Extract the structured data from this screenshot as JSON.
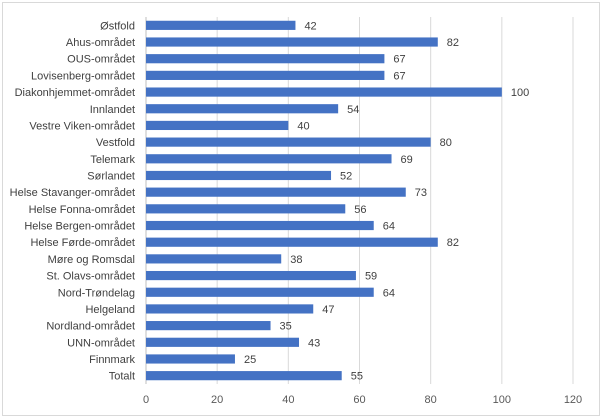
{
  "chart_data": {
    "type": "bar",
    "orientation": "horizontal",
    "title": "",
    "xlabel": "",
    "ylabel": "",
    "xlim": [
      0,
      120
    ],
    "xticks": [
      0,
      20,
      40,
      60,
      80,
      100,
      120
    ],
    "grid": true,
    "legend": "none",
    "bar_color": "#4472c4",
    "categories": [
      "Østfold",
      "Ahus-området",
      "OUS-området",
      "Lovisenberg-området",
      "Diakonhjemmet-området",
      "Innlandet",
      "Vestre Viken-området",
      "Vestfold",
      "Telemark",
      "Sørlandet",
      "Helse Stavanger-området",
      "Helse Fonna-området",
      "Helse Bergen-området",
      "Helse Førde-området",
      "Møre og Romsdal",
      "St. Olavs-området",
      "Nord-Trøndelag",
      "Helgeland",
      "Nordland-området",
      "UNN-området",
      "Finnmark",
      "Totalt"
    ],
    "values": [
      42,
      82,
      67,
      67,
      100,
      54,
      40,
      80,
      69,
      52,
      73,
      56,
      64,
      82,
      38,
      59,
      64,
      47,
      35,
      43,
      25,
      55
    ]
  }
}
